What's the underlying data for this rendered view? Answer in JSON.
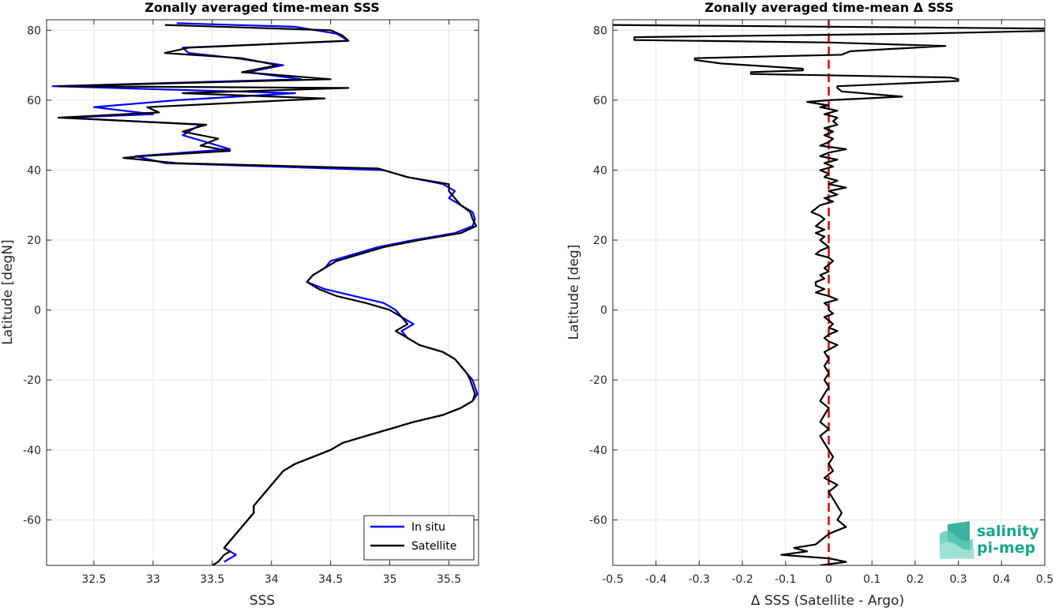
{
  "chart_data": [
    {
      "type": "line",
      "title": "Zonally averaged time-mean SSS",
      "xlabel": "SSS",
      "ylabel": "Latitude [degN]",
      "xlim": [
        32.1,
        35.75
      ],
      "ylim": [
        -73,
        83
      ],
      "xticks": [
        32.5,
        33,
        33.5,
        34,
        34.5,
        35,
        35.5
      ],
      "xtick_labels": [
        "32.5",
        "33",
        "33.5",
        "34",
        "34.5",
        "35",
        "35.5"
      ],
      "yticks": [
        -60,
        -40,
        -20,
        0,
        20,
        40,
        60,
        80
      ],
      "ytick_labels": [
        "-60",
        "-40",
        "-20",
        "0",
        "20",
        "40",
        "60",
        "80"
      ],
      "grid": true,
      "legend_position": "bottom-right",
      "legend": [
        "In situ",
        "Satellite"
      ],
      "series": [
        {
          "name": "In situ",
          "color": "#0000ff",
          "lat": [
            82,
            81,
            79,
            77,
            75,
            73.5,
            72,
            70,
            68,
            66,
            64,
            62,
            60,
            58,
            56,
            55,
            53,
            50,
            48,
            46,
            44,
            42,
            40,
            38,
            36,
            34,
            32,
            30,
            28,
            26,
            24,
            22,
            20,
            18,
            16,
            14,
            12,
            10,
            8,
            6,
            4,
            2,
            0,
            -2,
            -4,
            -6,
            -8,
            -10,
            -12,
            -14,
            -16,
            -18,
            -20,
            -22,
            -24,
            -26,
            -28,
            -30,
            -32,
            -34,
            -36,
            -38,
            -40,
            -42,
            -44,
            -46,
            -48,
            -50,
            -52,
            -54,
            -56,
            -58,
            -60,
            -62,
            -64,
            -66,
            -68,
            -70,
            -72
          ],
          "sss": [
            33.2,
            34.2,
            34.55,
            34.65,
            33.25,
            33.3,
            33.7,
            34.1,
            33.8,
            34.25,
            32.15,
            34.2,
            33.2,
            32.5,
            33.0,
            32.25,
            33.4,
            33.25,
            33.45,
            33.65,
            32.85,
            33.1,
            34.95,
            35.15,
            35.45,
            35.55,
            35.5,
            35.6,
            35.7,
            35.72,
            35.7,
            35.55,
            35.2,
            34.9,
            34.7,
            34.5,
            34.45,
            34.35,
            34.3,
            34.45,
            34.7,
            34.95,
            35.05,
            35.1,
            35.2,
            35.1,
            35.15,
            35.25,
            35.45,
            35.55,
            35.6,
            35.65,
            35.7,
            35.72,
            35.74,
            35.7,
            35.6,
            35.45,
            35.2,
            35.0,
            34.8,
            34.6,
            34.5,
            34.35,
            34.2,
            34.1,
            34.05,
            34.0,
            33.95,
            33.9,
            33.85,
            33.85,
            33.8,
            33.75,
            33.7,
            33.65,
            33.6,
            33.7,
            33.6
          ]
        },
        {
          "name": "Satellite",
          "color": "#000000",
          "lat": [
            81.5,
            80,
            78.5,
            77,
            75,
            73.5,
            72,
            70,
            68,
            66,
            64,
            63.5,
            62,
            60.5,
            58,
            56.5,
            55,
            53,
            51,
            49,
            47,
            45.5,
            44,
            43.5,
            42,
            40.5,
            38,
            36,
            34,
            32,
            30,
            28,
            26,
            24,
            22,
            20,
            18,
            16,
            14,
            12,
            10,
            8,
            6,
            4,
            2,
            0,
            -2,
            -4,
            -6,
            -8,
            -10,
            -12,
            -14,
            -16,
            -18,
            -20,
            -22,
            -24,
            -26,
            -28,
            -30,
            -32,
            -34,
            -36,
            -38,
            -40,
            -42,
            -44,
            -46,
            -48,
            -50,
            -52,
            -54,
            -56,
            -58,
            -60,
            -62,
            -64,
            -66,
            -68,
            -69,
            -70,
            -72,
            -73
          ],
          "sss": [
            33.1,
            34.5,
            34.6,
            34.65,
            33.3,
            33.1,
            33.75,
            34.05,
            33.75,
            34.5,
            32.2,
            34.65,
            33.25,
            34.45,
            32.95,
            33.05,
            32.2,
            33.45,
            33.25,
            33.55,
            33.4,
            33.65,
            32.9,
            32.75,
            33.2,
            34.9,
            35.15,
            35.5,
            35.5,
            35.55,
            35.6,
            35.68,
            35.7,
            35.73,
            35.6,
            35.25,
            34.95,
            34.75,
            34.55,
            34.45,
            34.35,
            34.3,
            34.4,
            34.55,
            34.8,
            35.0,
            35.1,
            35.15,
            35.05,
            35.15,
            35.25,
            35.45,
            35.55,
            35.6,
            35.65,
            35.68,
            35.7,
            35.72,
            35.7,
            35.6,
            35.45,
            35.2,
            35.0,
            34.8,
            34.6,
            34.5,
            34.35,
            34.2,
            34.1,
            34.05,
            34.0,
            33.95,
            33.9,
            33.85,
            33.85,
            33.8,
            33.75,
            33.7,
            33.65,
            33.6,
            33.65,
            33.6,
            33.55,
            33.5
          ]
        }
      ]
    },
    {
      "type": "line",
      "title": "Zonally averaged time-mean Δ SSS",
      "xlabel": "Δ SSS (Satellite - Argo)",
      "ylabel": "Latitude [deg]",
      "xlim": [
        -0.5,
        0.5
      ],
      "ylim": [
        -73,
        83
      ],
      "xticks": [
        -0.5,
        -0.4,
        -0.3,
        -0.2,
        -0.1,
        0,
        0.1,
        0.2,
        0.3,
        0.4,
        0.5
      ],
      "xtick_labels": [
        "-0.5",
        "-0.4",
        "-0.3",
        "-0.2",
        "-0.1",
        "0",
        "0.1",
        "0.2",
        "0.3",
        "0.4",
        "0.5"
      ],
      "yticks": [
        -60,
        -40,
        -20,
        0,
        20,
        40,
        60,
        80
      ],
      "ytick_labels": [
        "-60",
        "-40",
        "-20",
        "0",
        "20",
        "40",
        "60",
        "80"
      ],
      "grid": true,
      "reference_line": {
        "x": 0,
        "color": "#e00000",
        "style": "dashed"
      },
      "series": [
        {
          "name": "",
          "color": "#000000",
          "lat": [
            81.5,
            80.5,
            79.8,
            79,
            78,
            77.2,
            76.5,
            75.5,
            74,
            73,
            72,
            71.5,
            70.5,
            69,
            68.5,
            68,
            67.5,
            66.5,
            66,
            65.5,
            64,
            63.5,
            62.5,
            61,
            60,
            59.5,
            58.5,
            58,
            57,
            56,
            55,
            54,
            53,
            52,
            51,
            50,
            49,
            48,
            47,
            46,
            45,
            44,
            43,
            42,
            41,
            40,
            39,
            38,
            37,
            36,
            35,
            34,
            33,
            32,
            31,
            30,
            29,
            28,
            27,
            26,
            25,
            24,
            23,
            22,
            21,
            20,
            19,
            18,
            17,
            16,
            15,
            14,
            13,
            12,
            11,
            10,
            9,
            8,
            7,
            6,
            5,
            4,
            3,
            2,
            1,
            0,
            -1,
            -2,
            -3,
            -4,
            -5,
            -6,
            -7,
            -8,
            -9,
            -10,
            -12,
            -14,
            -16,
            -18,
            -20,
            -22,
            -24,
            -26,
            -28,
            -30,
            -32,
            -34,
            -36,
            -38,
            -40,
            -42,
            -44,
            -46,
            -48,
            -50,
            -52,
            -54,
            -56,
            -58,
            -60,
            -62,
            -63,
            -64,
            -65,
            -66,
            -67,
            -68,
            -69,
            -70,
            -71,
            -72,
            -73
          ],
          "dsss": [
            -0.5,
            0.5,
            0.5,
            0.2,
            -0.45,
            -0.45,
            0.0,
            0.27,
            0.05,
            0.03,
            -0.31,
            -0.31,
            -0.25,
            -0.06,
            -0.06,
            -0.18,
            -0.18,
            0.28,
            0.3,
            0.3,
            0.02,
            0.02,
            0.03,
            0.17,
            0.0,
            -0.05,
            0.0,
            -0.02,
            0.02,
            -0.01,
            0.02,
            0.01,
            0.02,
            -0.01,
            0.01,
            -0.01,
            0.01,
            0.0,
            -0.02,
            0.04,
            0.0,
            -0.02,
            0.02,
            -0.01,
            0.01,
            -0.02,
            0.0,
            -0.01,
            0.02,
            0.0,
            0.04,
            0.0,
            0.02,
            -0.01,
            0.01,
            -0.02,
            -0.03,
            -0.04,
            -0.02,
            -0.01,
            -0.02,
            -0.03,
            -0.01,
            -0.03,
            -0.01,
            -0.02,
            -0.01,
            0.0,
            -0.02,
            -0.03,
            0.0,
            0.01,
            0.0,
            -0.01,
            0.0,
            -0.02,
            -0.01,
            -0.03,
            -0.03,
            -0.01,
            -0.03,
            0.0,
            0.02,
            -0.01,
            0.0,
            0.0,
            0.01,
            -0.01,
            0.0,
            0.01,
            0.0,
            0.02,
            0.0,
            -0.01,
            0.0,
            0.02,
            -0.01,
            0.0,
            -0.01,
            0.0,
            -0.01,
            0.0,
            -0.01,
            -0.02,
            0.0,
            -0.01,
            -0.02,
            0.0,
            -0.02,
            -0.01,
            0.0,
            0.01,
            0.0,
            0.01,
            -0.01,
            0.02,
            0.0,
            0.01,
            0.02,
            0.03,
            0.02,
            0.04,
            0.02,
            0.0,
            -0.01,
            -0.02,
            -0.03,
            -0.08,
            -0.05,
            -0.11,
            0.0,
            0.04,
            -0.02,
            -0.05
          ]
        }
      ]
    }
  ],
  "logo": {
    "line1": "salinity",
    "line2": "pi-mep",
    "color": "#1aa58f"
  }
}
